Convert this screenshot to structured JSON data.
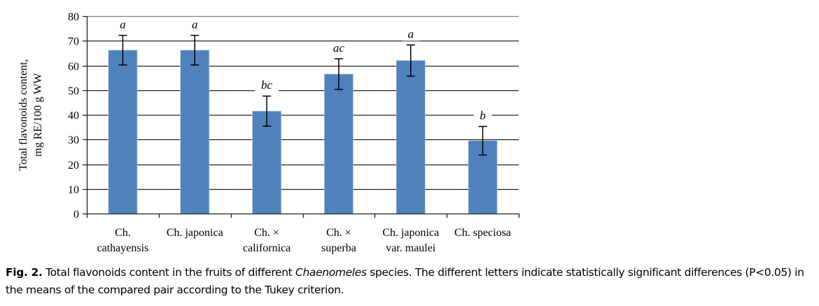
{
  "chart_data": {
    "type": "bar",
    "title": "",
    "xlabel": "",
    "ylabel": [
      "Total flavonoids content,",
      "mg RE/100 g WW"
    ],
    "ylim": [
      0,
      80
    ],
    "yticks": [
      0,
      10,
      20,
      30,
      40,
      50,
      60,
      70,
      80
    ],
    "grid": true,
    "legend": "none",
    "bar_color": "#4f81bd",
    "categories": [
      [
        "Ch.",
        "cathayensis"
      ],
      [
        "Ch. japonica"
      ],
      [
        "Ch. ×",
        "californica"
      ],
      [
        "Ch. ×",
        "superba"
      ],
      [
        "Ch. japonica",
        "var. maulei"
      ],
      [
        "Ch. speciosa"
      ]
    ],
    "values": [
      66.2,
      66.2,
      41.5,
      56.5,
      62.0,
      29.5
    ],
    "errors": [
      6.0,
      6.0,
      6.1,
      6.2,
      6.3,
      5.8
    ],
    "significance_letters": [
      "a",
      "a",
      "bc",
      "ac",
      "a",
      "b"
    ]
  },
  "caption": {
    "label": "Fig. 2.",
    "text_before_italic": " Total flavonoids content in the fruits of different ",
    "italic": "Chaenomeles",
    "text_after_italic": " species. The different letters indicate statistically significant differences (P<0.05) in the means of the compared pair according to the Tukey criterion."
  }
}
